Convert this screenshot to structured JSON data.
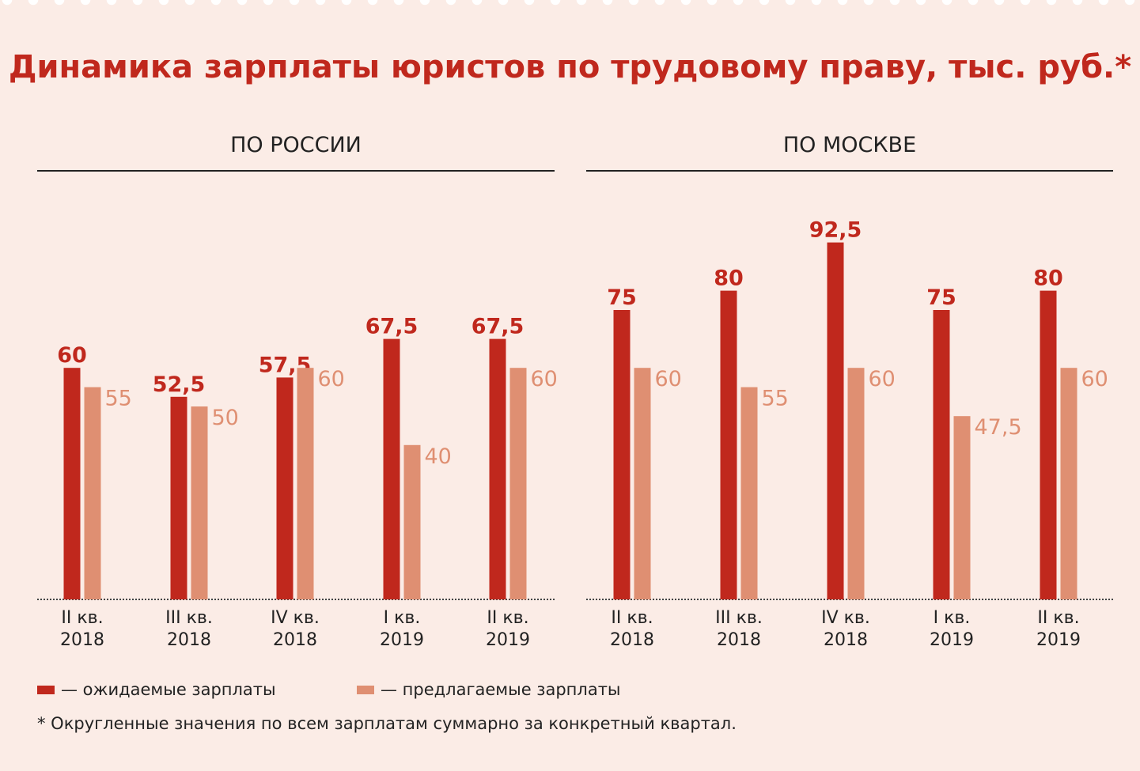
{
  "title": "Динамика зарплаты юристов по трудовому праву, тыс. руб.*",
  "colors": {
    "expected": "#c0281d",
    "offered": "#df8f72",
    "background": "#fbece6"
  },
  "legend": {
    "expected": "— ожидаемые зарплаты",
    "offered": "— предлагаемые зарплаты"
  },
  "footnote": "* Округленные значения по всем зарплатам суммарно за конкретный квартал.",
  "chart_data": [
    {
      "type": "bar",
      "title": "ПО РОССИИ",
      "categories": [
        [
          "II кв.",
          "2018"
        ],
        [
          "III кв.",
          "2018"
        ],
        [
          "IV кв.",
          "2018"
        ],
        [
          "I кв.",
          "2019"
        ],
        [
          "II кв.",
          "2019"
        ]
      ],
      "series": [
        {
          "name": "ожидаемые зарплаты",
          "values": [
            60,
            52.5,
            57.5,
            67.5,
            67.5
          ],
          "labels": [
            "60",
            "52,5",
            "57,5",
            "67,5",
            "67,5"
          ]
        },
        {
          "name": "предлагаемые зарплаты",
          "values": [
            55,
            50,
            60,
            40,
            60
          ],
          "labels": [
            "55",
            "50",
            "60",
            "40",
            "60"
          ]
        }
      ],
      "ylim": [
        0,
        100
      ]
    },
    {
      "type": "bar",
      "title": "ПО МОСКВЕ",
      "categories": [
        [
          "II кв.",
          "2018"
        ],
        [
          "III кв.",
          "2018"
        ],
        [
          "IV кв.",
          "2018"
        ],
        [
          "I кв.",
          "2019"
        ],
        [
          "II кв.",
          "2019"
        ]
      ],
      "series": [
        {
          "name": "ожидаемые зарплаты",
          "values": [
            75,
            80,
            92.5,
            75,
            80
          ],
          "labels": [
            "75",
            "80",
            "92,5",
            "75",
            "80"
          ]
        },
        {
          "name": "предлагаемые зарплаты",
          "values": [
            60,
            55,
            60,
            47.5,
            60
          ],
          "labels": [
            "60",
            "55",
            "60",
            "47,5",
            "60"
          ]
        }
      ],
      "ylim": [
        0,
        100
      ]
    }
  ]
}
